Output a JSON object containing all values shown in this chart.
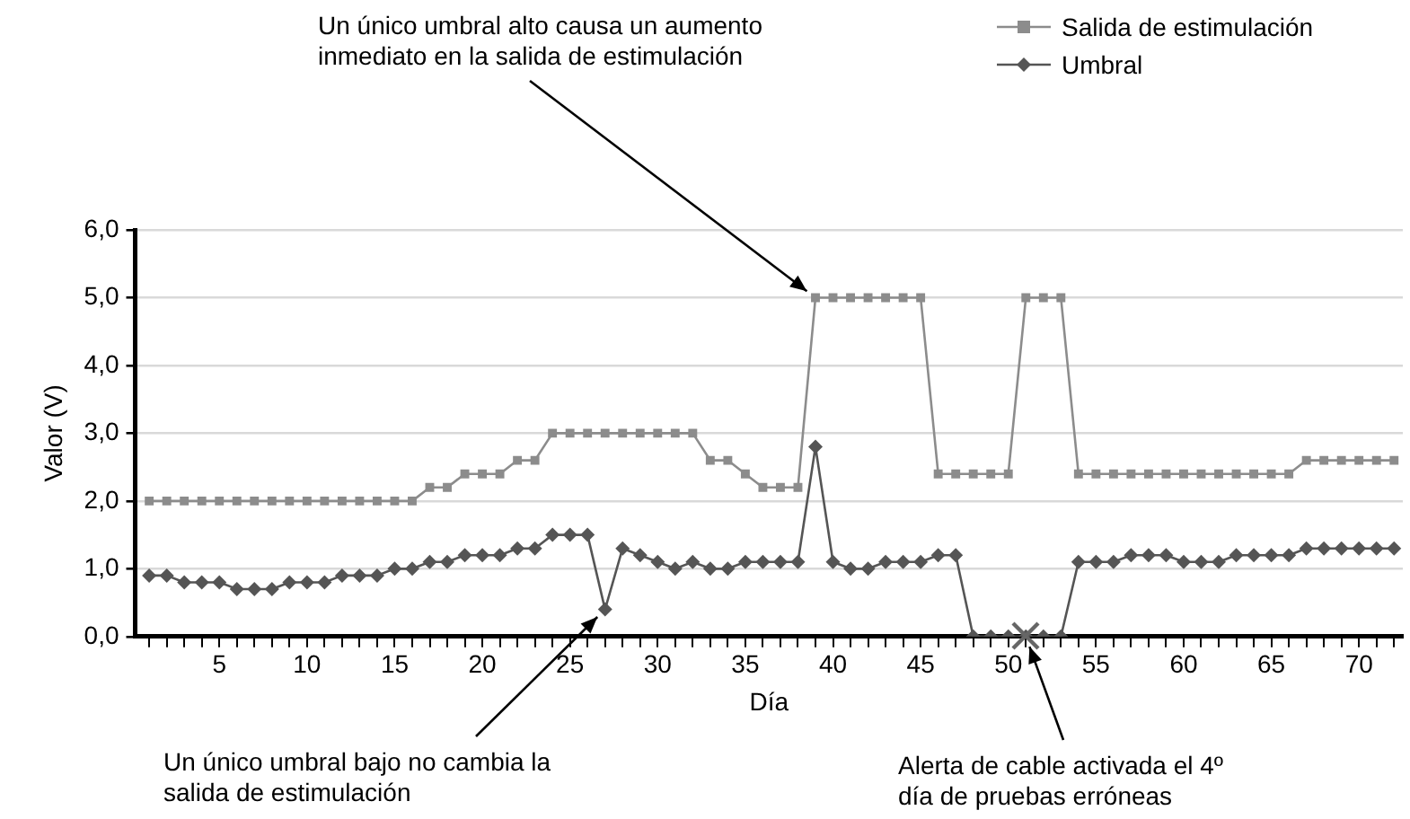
{
  "chart_data": {
    "type": "line",
    "xlabel": "Día",
    "ylabel": "Valor (V)",
    "x": [
      1,
      2,
      3,
      4,
      5,
      6,
      7,
      8,
      9,
      10,
      11,
      12,
      13,
      14,
      15,
      16,
      17,
      18,
      19,
      20,
      21,
      22,
      23,
      24,
      25,
      26,
      27,
      28,
      29,
      30,
      31,
      32,
      33,
      34,
      35,
      36,
      37,
      38,
      39,
      40,
      41,
      42,
      43,
      44,
      45,
      46,
      47,
      48,
      49,
      50,
      51,
      52,
      53,
      54,
      55,
      56,
      57,
      58,
      59,
      60,
      61,
      62,
      63,
      64,
      65,
      66,
      67,
      68,
      69,
      70,
      71,
      72
    ],
    "series": [
      {
        "name": "Salida de estimulación",
        "color": "#8c8c8c",
        "marker": "square",
        "values": [
          2.0,
          2.0,
          2.0,
          2.0,
          2.0,
          2.0,
          2.0,
          2.0,
          2.0,
          2.0,
          2.0,
          2.0,
          2.0,
          2.0,
          2.0,
          2.0,
          2.2,
          2.2,
          2.4,
          2.4,
          2.4,
          2.6,
          2.6,
          3.0,
          3.0,
          3.0,
          3.0,
          3.0,
          3.0,
          3.0,
          3.0,
          3.0,
          2.6,
          2.6,
          2.4,
          2.2,
          2.2,
          2.2,
          5.0,
          5.0,
          5.0,
          5.0,
          5.0,
          5.0,
          5.0,
          2.4,
          2.4,
          2.4,
          2.4,
          2.4,
          5.0,
          5.0,
          5.0,
          2.4,
          2.4,
          2.4,
          2.4,
          2.4,
          2.4,
          2.4,
          2.4,
          2.4,
          2.4,
          2.4,
          2.4,
          2.4,
          2.6,
          2.6,
          2.6,
          2.6,
          2.6,
          2.6
        ]
      },
      {
        "name": "Umbral",
        "color": "#555555",
        "marker": "diamond",
        "values": [
          0.9,
          0.9,
          0.8,
          0.8,
          0.8,
          0.7,
          0.7,
          0.7,
          0.8,
          0.8,
          0.8,
          0.9,
          0.9,
          0.9,
          1.0,
          1.0,
          1.1,
          1.1,
          1.2,
          1.2,
          1.2,
          1.3,
          1.3,
          1.5,
          1.5,
          1.5,
          0.4,
          1.3,
          1.2,
          1.1,
          1.0,
          1.1,
          1.0,
          1.0,
          1.1,
          1.1,
          1.1,
          1.1,
          2.8,
          1.1,
          1.0,
          1.0,
          1.1,
          1.1,
          1.1,
          1.2,
          1.2,
          0,
          0,
          0,
          0,
          0,
          0,
          1.1,
          1.1,
          1.1,
          1.2,
          1.2,
          1.2,
          1.1,
          1.1,
          1.1,
          1.2,
          1.2,
          1.2,
          1.2,
          1.3,
          1.3,
          1.3,
          1.3,
          1.3,
          1.3
        ]
      }
    ],
    "xlim": [
      0.2,
      72.5
    ],
    "xticks": [
      {
        "value": 1,
        "label": null
      },
      {
        "value": 2,
        "label": null
      },
      {
        "value": 3,
        "label": null
      },
      {
        "value": 4,
        "label": null
      },
      5,
      {
        "value": 6,
        "label": null
      },
      {
        "value": 7,
        "label": null
      },
      {
        "value": 8,
        "label": null
      },
      {
        "value": 9,
        "label": null
      },
      10,
      {
        "value": 11,
        "label": null
      },
      {
        "value": 12,
        "label": null
      },
      {
        "value": 13,
        "label": null
      },
      {
        "value": 14,
        "label": null
      },
      15,
      {
        "value": 16,
        "label": null
      },
      {
        "value": 17,
        "label": null
      },
      {
        "value": 18,
        "label": null
      },
      {
        "value": 19,
        "label": null
      },
      20,
      {
        "value": 21,
        "label": null
      },
      {
        "value": 22,
        "label": null
      },
      {
        "value": 23,
        "label": null
      },
      {
        "value": 24,
        "label": null
      },
      25,
      {
        "value": 26,
        "label": null
      },
      {
        "value": 27,
        "label": null
      },
      {
        "value": 28,
        "label": null
      },
      {
        "value": 29,
        "label": null
      },
      30,
      {
        "value": 31,
        "label": null
      },
      {
        "value": 32,
        "label": null
      },
      {
        "value": 33,
        "label": null
      },
      {
        "value": 34,
        "label": null
      },
      35,
      {
        "value": 36,
        "label": null
      },
      {
        "value": 37,
        "label": null
      },
      {
        "value": 38,
        "label": null
      },
      {
        "value": 39,
        "label": null
      },
      40,
      {
        "value": 41,
        "label": null
      },
      {
        "value": 42,
        "label": null
      },
      {
        "value": 43,
        "label": null
      },
      {
        "value": 44,
        "label": null
      },
      45,
      {
        "value": 46,
        "label": null
      },
      {
        "value": 47,
        "label": null
      },
      {
        "value": 48,
        "label": null
      },
      {
        "value": 49,
        "label": null
      },
      50,
      {
        "value": 51,
        "label": null
      },
      {
        "value": 52,
        "label": null
      },
      {
        "value": 53,
        "label": null
      },
      {
        "value": 54,
        "label": null
      },
      55,
      {
        "value": 56,
        "label": null
      },
      {
        "value": 57,
        "label": null
      },
      {
        "value": 58,
        "label": null
      },
      {
        "value": 59,
        "label": null
      },
      60,
      {
        "value": 61,
        "label": null
      },
      {
        "value": 62,
        "label": null
      },
      {
        "value": 63,
        "label": null
      },
      {
        "value": 64,
        "label": null
      },
      65,
      {
        "value": 66,
        "label": null
      },
      {
        "value": 67,
        "label": null
      },
      {
        "value": 68,
        "label": null
      },
      {
        "value": 69,
        "label": null
      },
      70,
      {
        "value": 71,
        "label": null
      },
      {
        "value": 72,
        "label": null
      }
    ],
    "ylim": [
      0,
      6
    ],
    "yticks": [
      {
        "value": 0,
        "label": "0,0"
      },
      {
        "value": 1,
        "label": "1,0"
      },
      {
        "value": 2,
        "label": "2,0"
      },
      {
        "value": 3,
        "label": "3,0"
      },
      {
        "value": 4,
        "label": "4,0"
      },
      {
        "value": 5,
        "label": "5,0"
      },
      {
        "value": 6,
        "label": "6,0"
      }
    ],
    "grid": "y",
    "legend": "top right",
    "line_style": "solid",
    "annotations": [
      {
        "text": "Un único umbral alto causa un aumento inmediato en la salida de estimulación",
        "x": 39,
        "y": 5.0
      },
      {
        "text": "Un único umbral bajo no cambia la salida de estimulación",
        "x": 27,
        "y": 0.4
      },
      {
        "text": "Alerta de cable activada el 4º día de pruebas erróneas",
        "x": 51,
        "y": 0
      }
    ]
  }
}
